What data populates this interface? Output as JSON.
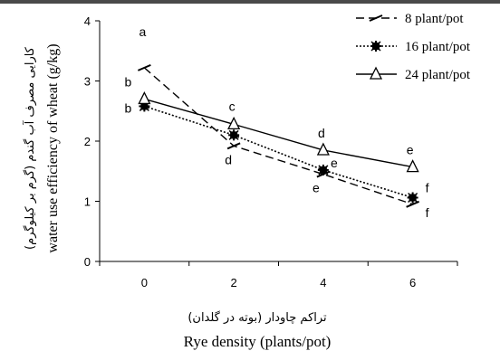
{
  "chart_data": {
    "type": "line",
    "x": [
      0,
      2,
      4,
      6
    ],
    "xlim": [
      -1,
      7
    ],
    "ylim": [
      0,
      4
    ],
    "xticks": [
      "0",
      "2",
      "4",
      "6"
    ],
    "yticks": [
      "0",
      "1",
      "2",
      "3",
      "4"
    ],
    "xlabel_en": "Rye density (plants/pot)",
    "xlabel_fa": "تراکم چاودار (بوته در گلدان)",
    "ylabel_en": "water use efficiency of wheat (g/kg)",
    "ylabel_fa": "کارایی مصرف آب گندم (گرم بر کیلوگرم)",
    "legend_position": "top-right",
    "grid": false,
    "series": [
      {
        "name": "8 plant/pot",
        "style": "dashed",
        "marker": "dash",
        "values": [
          3.22,
          1.92,
          1.45,
          0.95
        ],
        "letters": [
          "a",
          "d",
          "e",
          "f"
        ]
      },
      {
        "name": "16 plant/pot",
        "style": "dotted",
        "marker": "star",
        "values": [
          2.58,
          2.1,
          1.52,
          1.06
        ],
        "letters": [
          "b",
          "",
          "e",
          "f"
        ]
      },
      {
        "name": "24 plant/pot",
        "style": "solid",
        "marker": "triangle",
        "values": [
          2.7,
          2.28,
          1.85,
          1.57
        ],
        "letters": [
          "b",
          "c",
          "d",
          "e"
        ]
      }
    ]
  }
}
